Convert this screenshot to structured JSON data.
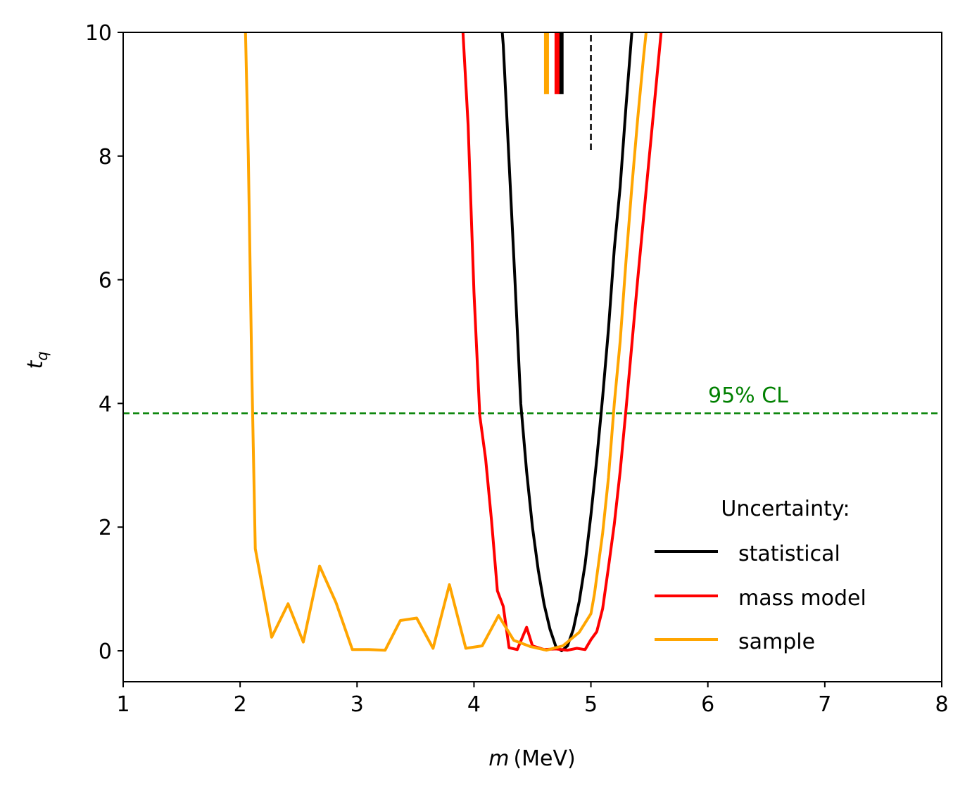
{
  "chart_data": {
    "type": "line",
    "title": "",
    "xlabel_var": "m",
    "xlabel_unit": "(MeV)",
    "ylabel_var": "t",
    "ylabel_sub": "q",
    "xlim": [
      1,
      8
    ],
    "ylim": [
      -0.5,
      10
    ],
    "xticks": [
      1,
      2,
      3,
      4,
      5,
      6,
      7,
      8
    ],
    "yticks": [
      0,
      2,
      4,
      6,
      8,
      10
    ],
    "grid": false,
    "legend": {
      "title": "Uncertainty:",
      "placement": "lower-right",
      "entries": [
        "statistical",
        "mass model",
        "sample"
      ]
    },
    "reference_line": {
      "y": 3.84,
      "label": "95% CL",
      "color": "#008000",
      "style": "dashed"
    },
    "true_value_marker": {
      "x": 5.0,
      "y_range": [
        8.1,
        10
      ],
      "color": "#000000",
      "style": "dashed"
    },
    "series": [
      {
        "name": "statistical",
        "color": "#000000",
        "best_fit_marker": {
          "x": 4.745,
          "y_range": [
            9.0,
            10
          ]
        },
        "points": [
          [
            4.22,
            10.5
          ],
          [
            4.25,
            9.8
          ],
          [
            4.3,
            7.9
          ],
          [
            4.35,
            6.0
          ],
          [
            4.4,
            4.0
          ],
          [
            4.45,
            2.9
          ],
          [
            4.5,
            2.0
          ],
          [
            4.55,
            1.3
          ],
          [
            4.6,
            0.75
          ],
          [
            4.65,
            0.35
          ],
          [
            4.7,
            0.07
          ],
          [
            4.75,
            0.0
          ],
          [
            4.8,
            0.08
          ],
          [
            4.85,
            0.35
          ],
          [
            4.9,
            0.8
          ],
          [
            4.95,
            1.4
          ],
          [
            5.0,
            2.2
          ],
          [
            5.05,
            3.1
          ],
          [
            5.1,
            4.1
          ],
          [
            5.15,
            5.2
          ],
          [
            5.2,
            6.5
          ],
          [
            5.25,
            7.5
          ],
          [
            5.3,
            8.8
          ],
          [
            5.35,
            10.0
          ],
          [
            5.38,
            10.5
          ]
        ]
      },
      {
        "name": "mass model",
        "color": "#ff0000",
        "best_fit_marker": {
          "x": 4.71,
          "y_range": [
            9.0,
            10
          ]
        },
        "points": [
          [
            3.9,
            10.2
          ],
          [
            3.95,
            8.5
          ],
          [
            4.0,
            5.8
          ],
          [
            4.05,
            3.8
          ],
          [
            4.1,
            3.1
          ],
          [
            4.15,
            2.1
          ],
          [
            4.2,
            0.97
          ],
          [
            4.25,
            0.72
          ],
          [
            4.3,
            0.05
          ],
          [
            4.37,
            0.02
          ],
          [
            4.45,
            0.38
          ],
          [
            4.5,
            0.08
          ],
          [
            4.6,
            0.02
          ],
          [
            4.7,
            0.03
          ],
          [
            4.8,
            0.01
          ],
          [
            4.88,
            0.04
          ],
          [
            4.95,
            0.02
          ],
          [
            5.0,
            0.18
          ],
          [
            5.05,
            0.31
          ],
          [
            5.1,
            0.68
          ],
          [
            5.15,
            1.35
          ],
          [
            5.2,
            2.05
          ],
          [
            5.25,
            2.9
          ],
          [
            5.3,
            3.9
          ],
          [
            5.35,
            4.95
          ],
          [
            5.4,
            6.0
          ],
          [
            5.45,
            7.0
          ],
          [
            5.5,
            8.0
          ],
          [
            5.55,
            9.0
          ],
          [
            5.6,
            10.0
          ],
          [
            5.62,
            10.4
          ]
        ]
      },
      {
        "name": "sample",
        "color": "#ffa500",
        "best_fit_marker": {
          "x": 4.62,
          "y_range": [
            9.0,
            10
          ]
        },
        "points": [
          [
            2.04,
            10.5
          ],
          [
            2.07,
            8.0
          ],
          [
            2.1,
            4.5
          ],
          [
            2.13,
            1.65
          ],
          [
            2.27,
            0.22
          ],
          [
            2.41,
            0.76
          ],
          [
            2.54,
            0.14
          ],
          [
            2.68,
            1.37
          ],
          [
            2.82,
            0.78
          ],
          [
            2.96,
            0.02
          ],
          [
            3.1,
            0.02
          ],
          [
            3.24,
            0.01
          ],
          [
            3.37,
            0.49
          ],
          [
            3.51,
            0.53
          ],
          [
            3.65,
            0.04
          ],
          [
            3.79,
            1.07
          ],
          [
            3.93,
            0.04
          ],
          [
            4.07,
            0.08
          ],
          [
            4.21,
            0.57
          ],
          [
            4.34,
            0.17
          ],
          [
            4.48,
            0.07
          ],
          [
            4.62,
            0.01
          ],
          [
            4.76,
            0.08
          ],
          [
            4.9,
            0.3
          ],
          [
            5.0,
            0.6
          ],
          [
            5.03,
            0.92
          ],
          [
            5.1,
            1.9
          ],
          [
            5.15,
            2.8
          ],
          [
            5.2,
            4.0
          ],
          [
            5.25,
            5.0
          ],
          [
            5.3,
            6.3
          ],
          [
            5.35,
            7.5
          ],
          [
            5.4,
            8.6
          ],
          [
            5.45,
            9.6
          ],
          [
            5.5,
            10.5
          ]
        ]
      }
    ]
  }
}
